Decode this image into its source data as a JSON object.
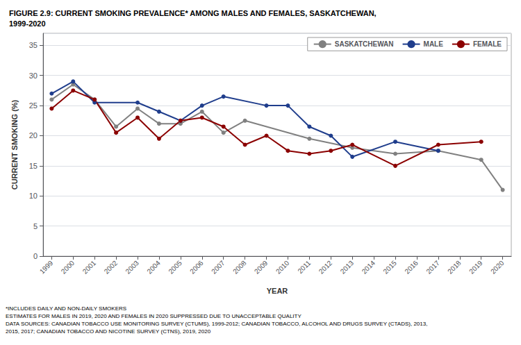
{
  "chart_data": {
    "type": "line",
    "title": "FIGURE 2.9: CURRENT SMOKING PREVALENCE* AMONG MALES AND FEMALES, SASKATCHEWAN,\n1999-2020",
    "x_label": "YEAR",
    "y_label": "CURRENT SMOKING (%)",
    "x": [
      1999,
      2000,
      2001,
      2002,
      2003,
      2004,
      2005,
      2006,
      2007,
      2008,
      2009,
      2010,
      2011,
      2012,
      2013,
      2014,
      2015,
      2016,
      2017,
      2018,
      2019,
      2020
    ],
    "series": [
      {
        "name": "SASKATCHEWAN",
        "color": "#808080",
        "marker": "circle",
        "values": [
          26.0,
          28.5,
          26.0,
          21.5,
          24.5,
          22.0,
          22.0,
          24.0,
          20.5,
          22.5,
          null,
          null,
          19.5,
          null,
          18.0,
          null,
          17.0,
          null,
          17.5,
          null,
          16.0,
          11.0
        ]
      },
      {
        "name": "MALE",
        "color": "#1f3d8c",
        "marker": "circle",
        "values": [
          27.0,
          29.0,
          25.5,
          null,
          25.5,
          24.0,
          22.5,
          25.0,
          26.5,
          null,
          25.0,
          25.0,
          21.5,
          20.0,
          16.5,
          null,
          19.0,
          null,
          17.5,
          null,
          null,
          null
        ]
      },
      {
        "name": "FEMALE",
        "color": "#8b0000",
        "marker": "circle",
        "values": [
          24.5,
          27.5,
          26.0,
          20.5,
          23.0,
          19.5,
          22.5,
          23.0,
          21.5,
          18.5,
          20.0,
          17.5,
          17.0,
          17.5,
          18.5,
          null,
          15.0,
          null,
          18.5,
          null,
          19.0,
          null
        ]
      }
    ],
    "xlim": [
      1998.6,
      2020.4
    ],
    "xticks": [
      1999,
      2000,
      2001,
      2002,
      2003,
      2004,
      2005,
      2006,
      2007,
      2008,
      2009,
      2010,
      2011,
      2012,
      2013,
      2014,
      2015,
      2016,
      2017,
      2018,
      2019,
      2020
    ],
    "ylim": [
      0,
      37
    ],
    "yticks": [
      0,
      5,
      10,
      15,
      20,
      25,
      30,
      35
    ],
    "grid": true,
    "legend": "upper right",
    "annotations": [
      "*INCLUDES DAILY AND NON-DAILY SMOKERS",
      "ESTIMATES FOR MALES IN 2019, 2020 AND FEMALES IN 2020 SUPPRESSED DUE TO UNACCEPTABLE QUALITY",
      "DATA SOURCES: CANADIAN TOBACCO USE MONITORING SURVEY (CTUMS), 1999-2012; CANADIAN TOBACCO, ALCOHOL AND DRUGS SURVEY (CTADS), 2013,",
      "2015, 2017; CANADIAN TOBACCO AND NICOTINE SURVEY (CTNS), 2019, 2020"
    ]
  }
}
